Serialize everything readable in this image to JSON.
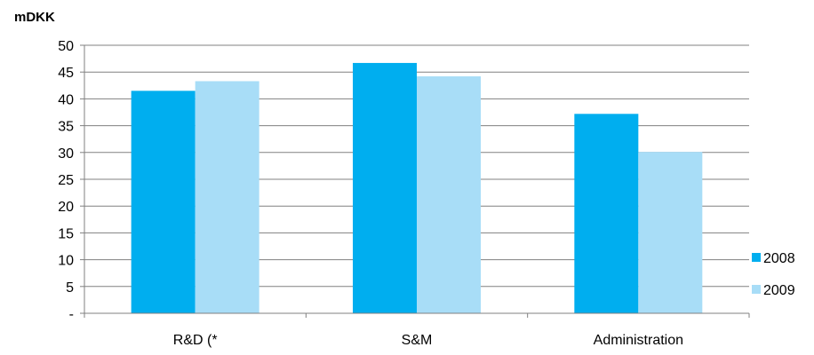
{
  "chart_data": {
    "type": "bar",
    "unit_label": "mDKK",
    "categories": [
      "R&D (*",
      "S&M",
      "Administration"
    ],
    "series": [
      {
        "name": "2008",
        "color": "#00AEEF",
        "values": [
          41.5,
          46.7,
          37.2
        ]
      },
      {
        "name": "2009",
        "color": "#A8DDF7",
        "values": [
          43.3,
          44.2,
          30.1
        ]
      }
    ],
    "ylim": [
      0,
      50
    ],
    "y_ticks": [
      0,
      5,
      10,
      15,
      20,
      25,
      30,
      35,
      40,
      45,
      50
    ],
    "y_tick_labels": [
      "-",
      "5",
      "10",
      "15",
      "20",
      "25",
      "30",
      "35",
      "40",
      "45",
      "50"
    ],
    "grid": true,
    "gridline_color": "#808080",
    "legend_position": "right"
  }
}
